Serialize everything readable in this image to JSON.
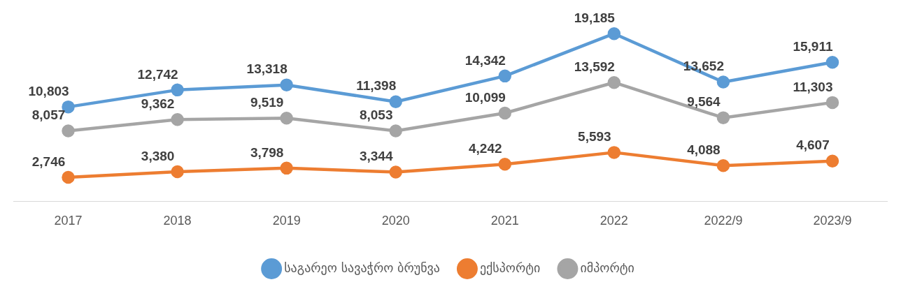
{
  "chart_data": {
    "type": "line",
    "categories": [
      "2017",
      "2018",
      "2019",
      "2020",
      "2021",
      "2022",
      "2022/9",
      "2023/9"
    ],
    "series": [
      {
        "name": "საგარეო სავაჭრო ბრუნვა",
        "color": "#5b9bd5",
        "values": [
          10803,
          12742,
          13318,
          11398,
          14342,
          19185,
          13652,
          15911
        ],
        "value_labels": [
          "10,803",
          "12,742",
          "13,318",
          "11,398",
          "14,342",
          "19,185",
          "13,652",
          "15,911"
        ]
      },
      {
        "name": "ექსპორტი",
        "color": "#ed7d31",
        "values": [
          2746,
          3380,
          3798,
          3344,
          4242,
          5593,
          4088,
          4607
        ],
        "value_labels": [
          "2,746",
          "3,380",
          "3,798",
          "3,344",
          "4,242",
          "5,593",
          "4,088",
          "4,607"
        ]
      },
      {
        "name": "იმპორტი",
        "color": "#a5a5a5",
        "values": [
          8057,
          9362,
          9519,
          8053,
          10099,
          13592,
          9564,
          11303
        ],
        "value_labels": [
          "8,057",
          "9,362",
          "9,519",
          "8,053",
          "10,099",
          "13,592",
          "9,564",
          "11,303"
        ]
      }
    ],
    "marker": "circle",
    "legend": "bottom",
    "grid": false
  }
}
